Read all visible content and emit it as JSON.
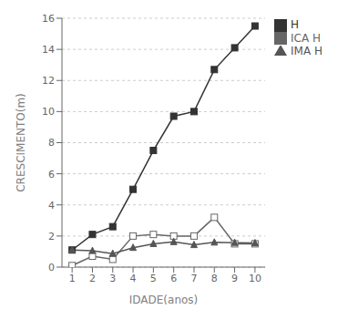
{
  "chart_data": {
    "type": "line",
    "xlabel": "IDADE(anos)",
    "ylabel": "CRESCIMENTO(m)",
    "x": [
      1,
      2,
      3,
      4,
      5,
      6,
      7,
      8,
      9,
      10
    ],
    "series": [
      {
        "name": "H",
        "color": "#333333",
        "marker": "square",
        "values": [
          1.1,
          2.1,
          2.6,
          5.0,
          7.5,
          9.7,
          10.0,
          12.7,
          14.1,
          15.5
        ]
      },
      {
        "name": "ICA H",
        "color": "#666666",
        "marker": "open_square",
        "values": [
          0.1,
          0.7,
          0.5,
          2.0,
          2.1,
          2.0,
          2.0,
          3.2,
          1.5,
          1.5
        ]
      },
      {
        "name": "IMA H",
        "color": "#555555",
        "marker": "triangle",
        "values": [
          1.1,
          1.05,
          0.87,
          1.25,
          1.5,
          1.62,
          1.43,
          1.59,
          1.57,
          1.55
        ]
      }
    ],
    "xlim": [
      0.5,
      10.5
    ],
    "xticks": [
      1,
      2,
      3,
      4,
      5,
      6,
      7,
      8,
      9,
      10
    ],
    "ylim": [
      0,
      16
    ],
    "yticks": [
      0,
      2,
      4,
      6,
      8,
      10,
      12,
      14,
      16
    ],
    "grid": true,
    "legend": "right"
  }
}
